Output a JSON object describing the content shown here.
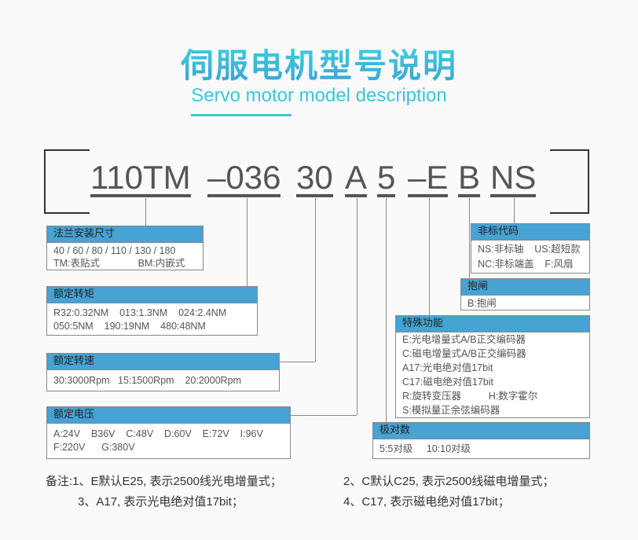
{
  "header": {
    "title": "伺服电机型号说明",
    "subtitle": "Servo motor model description"
  },
  "model": {
    "segments": [
      "110TM",
      "–036",
      "30",
      "A",
      "5",
      "–E",
      "B",
      "NS"
    ]
  },
  "boxes": {
    "flange": {
      "title": "法兰安装尺寸",
      "lines": [
        "40 / 60 / 80 / 110 / 130 / 180",
        "TM:表贴式              BM:内嵌式"
      ]
    },
    "torque": {
      "title": "额定转矩",
      "lines": [
        "R32:0.32NM    013:1.3NM    024:2.4NM",
        "050:5NM    190:19NM    480:48NM"
      ]
    },
    "speed": {
      "title": "额定转速",
      "lines": [
        "30:3000Rpm   15:1500Rpm    20:2000Rpm"
      ]
    },
    "voltage": {
      "title": "额定电压",
      "lines": [
        "A:24V    B36V    C:48V    D:60V    E:72V    I:96V",
        "F:220V      G:380V"
      ]
    },
    "nonstandard": {
      "title": "非标代码",
      "lines": [
        "NS:非标轴    US:超短款",
        "NC:非标端盖    F:风扇"
      ]
    },
    "brake": {
      "title": "抱闸",
      "lines": [
        "B:抱闸"
      ]
    },
    "feature": {
      "title": "特殊功能",
      "lines": [
        "E:光电增量式A/B正交编码器",
        "C:磁电增量式A/B正交编码器",
        "A17:光电绝对值17bit",
        "C17:磁电绝对值17bit",
        "R:旋转变压器          H:数字霍尔",
        "S:模拟量正余弦编码器"
      ]
    },
    "poles": {
      "title": "极对数",
      "lines": [
        "5:5对级     10:10对级"
      ]
    }
  },
  "notes": {
    "line1a": "备注:1、E默认E25, 表示2500线光电增量式；",
    "line1b": "2、C默认C25, 表示2500线磁电增量式；",
    "line2a": "3、A17, 表示光电绝对值17bit；",
    "line2b": "4、C17, 表示磁电绝对值17bit；"
  },
  "colors": {
    "accent": "#3cc6d6",
    "box_header": "#46a3d3",
    "text": "#555555"
  }
}
